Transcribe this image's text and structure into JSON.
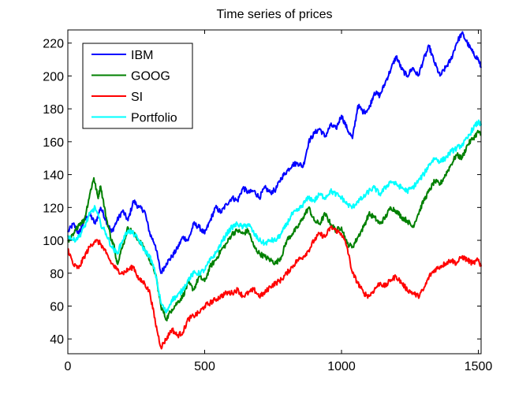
{
  "chart_data": {
    "type": "line",
    "title": "Time series of prices",
    "xlabel": "",
    "ylabel": "",
    "xlim": [
      0,
      1510
    ],
    "ylim": [
      31,
      228
    ],
    "xticks": [
      0,
      500,
      1000,
      1500
    ],
    "yticks": [
      40,
      60,
      80,
      100,
      120,
      140,
      160,
      180,
      200,
      220
    ],
    "grid": false,
    "legend_position": "top-left",
    "series": [
      {
        "name": "IBM",
        "color": "#0000ff",
        "points": [
          [
            0,
            105
          ],
          [
            20,
            110
          ],
          [
            40,
            104
          ],
          [
            60,
            112
          ],
          [
            80,
            116
          ],
          [
            100,
            110
          ],
          [
            120,
            120
          ],
          [
            140,
            112
          ],
          [
            160,
            105
          ],
          [
            180,
            112
          ],
          [
            200,
            118
          ],
          [
            220,
            112
          ],
          [
            240,
            124
          ],
          [
            260,
            120
          ],
          [
            280,
            118
          ],
          [
            300,
            104
          ],
          [
            320,
            97
          ],
          [
            340,
            80
          ],
          [
            360,
            86
          ],
          [
            380,
            90
          ],
          [
            400,
            95
          ],
          [
            420,
            102
          ],
          [
            440,
            100
          ],
          [
            460,
            110
          ],
          [
            480,
            108
          ],
          [
            500,
            104
          ],
          [
            520,
            112
          ],
          [
            540,
            120
          ],
          [
            560,
            117
          ],
          [
            580,
            122
          ],
          [
            600,
            126
          ],
          [
            620,
            124
          ],
          [
            640,
            132
          ],
          [
            660,
            129
          ],
          [
            680,
            130
          ],
          [
            700,
            126
          ],
          [
            720,
            132
          ],
          [
            740,
            129
          ],
          [
            760,
            131
          ],
          [
            780,
            138
          ],
          [
            800,
            142
          ],
          [
            820,
            146
          ],
          [
            840,
            147
          ],
          [
            860,
            145
          ],
          [
            880,
            160
          ],
          [
            900,
            165
          ],
          [
            920,
            168
          ],
          [
            940,
            163
          ],
          [
            960,
            170
          ],
          [
            980,
            168
          ],
          [
            1000,
            176
          ],
          [
            1020,
            168
          ],
          [
            1040,
            162
          ],
          [
            1060,
            182
          ],
          [
            1080,
            178
          ],
          [
            1100,
            180
          ],
          [
            1120,
            190
          ],
          [
            1140,
            188
          ],
          [
            1160,
            196
          ],
          [
            1180,
            204
          ],
          [
            1200,
            212
          ],
          [
            1220,
            204
          ],
          [
            1240,
            200
          ],
          [
            1260,
            205
          ],
          [
            1280,
            200
          ],
          [
            1300,
            210
          ],
          [
            1320,
            218
          ],
          [
            1340,
            208
          ],
          [
            1360,
            200
          ],
          [
            1380,
            205
          ],
          [
            1400,
            210
          ],
          [
            1420,
            220
          ],
          [
            1440,
            226
          ],
          [
            1460,
            220
          ],
          [
            1480,
            214
          ],
          [
            1500,
            210
          ],
          [
            1510,
            205
          ]
        ]
      },
      {
        "name": "GOOG",
        "color": "#008000",
        "points": [
          [
            0,
            100
          ],
          [
            20,
            103
          ],
          [
            40,
            110
          ],
          [
            60,
            112
          ],
          [
            80,
            128
          ],
          [
            95,
            138
          ],
          [
            110,
            126
          ],
          [
            120,
            133
          ],
          [
            140,
            114
          ],
          [
            160,
            100
          ],
          [
            170,
            96
          ],
          [
            180,
            86
          ],
          [
            200,
            96
          ],
          [
            220,
            108
          ],
          [
            240,
            104
          ],
          [
            260,
            100
          ],
          [
            280,
            95
          ],
          [
            300,
            88
          ],
          [
            320,
            80
          ],
          [
            340,
            60
          ],
          [
            360,
            52
          ],
          [
            380,
            58
          ],
          [
            400,
            62
          ],
          [
            420,
            66
          ],
          [
            440,
            74
          ],
          [
            460,
            70
          ],
          [
            480,
            78
          ],
          [
            500,
            75
          ],
          [
            520,
            84
          ],
          [
            540,
            88
          ],
          [
            560,
            94
          ],
          [
            580,
            98
          ],
          [
            600,
            104
          ],
          [
            620,
            106
          ],
          [
            640,
            104
          ],
          [
            660,
            106
          ],
          [
            680,
            96
          ],
          [
            700,
            92
          ],
          [
            720,
            90
          ],
          [
            740,
            88
          ],
          [
            760,
            86
          ],
          [
            780,
            90
          ],
          [
            800,
            100
          ],
          [
            820,
            104
          ],
          [
            840,
            108
          ],
          [
            860,
            114
          ],
          [
            880,
            120
          ],
          [
            900,
            112
          ],
          [
            920,
            110
          ],
          [
            940,
            116
          ],
          [
            960,
            110
          ],
          [
            980,
            106
          ],
          [
            1000,
            108
          ],
          [
            1020,
            98
          ],
          [
            1040,
            96
          ],
          [
            1060,
            102
          ],
          [
            1080,
            108
          ],
          [
            1100,
            116
          ],
          [
            1120,
            114
          ],
          [
            1140,
            110
          ],
          [
            1160,
            114
          ],
          [
            1180,
            120
          ],
          [
            1200,
            118
          ],
          [
            1220,
            114
          ],
          [
            1240,
            112
          ],
          [
            1260,
            108
          ],
          [
            1280,
            116
          ],
          [
            1300,
            124
          ],
          [
            1320,
            130
          ],
          [
            1340,
            136
          ],
          [
            1360,
            134
          ],
          [
            1380,
            140
          ],
          [
            1400,
            146
          ],
          [
            1420,
            152
          ],
          [
            1440,
            150
          ],
          [
            1460,
            158
          ],
          [
            1480,
            162
          ],
          [
            1500,
            166
          ],
          [
            1510,
            164
          ]
        ]
      },
      {
        "name": "SI",
        "color": "#ff0000",
        "points": [
          [
            0,
            95
          ],
          [
            20,
            85
          ],
          [
            40,
            83
          ],
          [
            60,
            90
          ],
          [
            80,
            96
          ],
          [
            100,
            100
          ],
          [
            120,
            98
          ],
          [
            140,
            92
          ],
          [
            160,
            86
          ],
          [
            180,
            82
          ],
          [
            200,
            80
          ],
          [
            220,
            82
          ],
          [
            240,
            84
          ],
          [
            260,
            76
          ],
          [
            280,
            74
          ],
          [
            300,
            68
          ],
          [
            320,
            50
          ],
          [
            340,
            35
          ],
          [
            360,
            40
          ],
          [
            380,
            46
          ],
          [
            400,
            42
          ],
          [
            420,
            44
          ],
          [
            440,
            52
          ],
          [
            460,
            54
          ],
          [
            480,
            56
          ],
          [
            500,
            60
          ],
          [
            520,
            62
          ],
          [
            540,
            64
          ],
          [
            560,
            66
          ],
          [
            580,
            68
          ],
          [
            600,
            68
          ],
          [
            620,
            70
          ],
          [
            640,
            66
          ],
          [
            660,
            68
          ],
          [
            680,
            70
          ],
          [
            700,
            66
          ],
          [
            720,
            68
          ],
          [
            740,
            72
          ],
          [
            760,
            74
          ],
          [
            780,
            76
          ],
          [
            800,
            80
          ],
          [
            820,
            84
          ],
          [
            840,
            88
          ],
          [
            860,
            90
          ],
          [
            880,
            94
          ],
          [
            900,
            100
          ],
          [
            920,
            104
          ],
          [
            940,
            102
          ],
          [
            960,
            108
          ],
          [
            980,
            106
          ],
          [
            1000,
            104
          ],
          [
            1020,
            96
          ],
          [
            1040,
            80
          ],
          [
            1060,
            74
          ],
          [
            1080,
            68
          ],
          [
            1100,
            66
          ],
          [
            1120,
            70
          ],
          [
            1140,
            74
          ],
          [
            1160,
            72
          ],
          [
            1180,
            76
          ],
          [
            1200,
            78
          ],
          [
            1220,
            74
          ],
          [
            1240,
            70
          ],
          [
            1260,
            68
          ],
          [
            1280,
            66
          ],
          [
            1300,
            70
          ],
          [
            1320,
            78
          ],
          [
            1340,
            82
          ],
          [
            1360,
            84
          ],
          [
            1380,
            86
          ],
          [
            1400,
            88
          ],
          [
            1420,
            86
          ],
          [
            1440,
            90
          ],
          [
            1460,
            88
          ],
          [
            1480,
            86
          ],
          [
            1500,
            88
          ],
          [
            1510,
            84
          ]
        ]
      },
      {
        "name": "Portfolio",
        "color": "#00ffff",
        "points": [
          [
            0,
            103
          ],
          [
            20,
            100
          ],
          [
            40,
            102
          ],
          [
            60,
            108
          ],
          [
            80,
            116
          ],
          [
            100,
            120
          ],
          [
            120,
            110
          ],
          [
            140,
            104
          ],
          [
            160,
            96
          ],
          [
            180,
            92
          ],
          [
            200,
            100
          ],
          [
            220,
            106
          ],
          [
            240,
            104
          ],
          [
            260,
            100
          ],
          [
            280,
            94
          ],
          [
            300,
            90
          ],
          [
            320,
            80
          ],
          [
            340,
            62
          ],
          [
            360,
            56
          ],
          [
            380,
            64
          ],
          [
            400,
            66
          ],
          [
            420,
            70
          ],
          [
            440,
            76
          ],
          [
            460,
            80
          ],
          [
            480,
            80
          ],
          [
            500,
            82
          ],
          [
            520,
            88
          ],
          [
            540,
            92
          ],
          [
            560,
            98
          ],
          [
            580,
            104
          ],
          [
            600,
            108
          ],
          [
            620,
            110
          ],
          [
            640,
            108
          ],
          [
            660,
            110
          ],
          [
            680,
            104
          ],
          [
            700,
            100
          ],
          [
            720,
            98
          ],
          [
            740,
            100
          ],
          [
            760,
            100
          ],
          [
            780,
            104
          ],
          [
            800,
            110
          ],
          [
            820,
            116
          ],
          [
            840,
            118
          ],
          [
            860,
            122
          ],
          [
            880,
            126
          ],
          [
            900,
            124
          ],
          [
            920,
            128
          ],
          [
            940,
            126
          ],
          [
            960,
            130
          ],
          [
            980,
            128
          ],
          [
            1000,
            126
          ],
          [
            1020,
            122
          ],
          [
            1040,
            120
          ],
          [
            1060,
            124
          ],
          [
            1080,
            126
          ],
          [
            1100,
            130
          ],
          [
            1120,
            132
          ],
          [
            1140,
            128
          ],
          [
            1160,
            132
          ],
          [
            1180,
            136
          ],
          [
            1200,
            134
          ],
          [
            1220,
            132
          ],
          [
            1240,
            130
          ],
          [
            1260,
            132
          ],
          [
            1280,
            136
          ],
          [
            1300,
            140
          ],
          [
            1320,
            146
          ],
          [
            1340,
            150
          ],
          [
            1360,
            148
          ],
          [
            1380,
            150
          ],
          [
            1400,
            154
          ],
          [
            1420,
            156
          ],
          [
            1440,
            158
          ],
          [
            1460,
            162
          ],
          [
            1480,
            168
          ],
          [
            1500,
            172
          ],
          [
            1510,
            170
          ]
        ]
      }
    ]
  }
}
